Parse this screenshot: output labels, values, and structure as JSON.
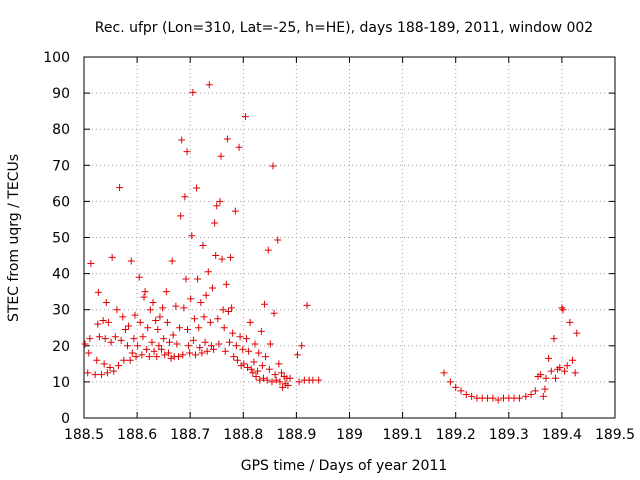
{
  "chart_data": {
    "type": "scatter",
    "title": "Rec. ufpr (Lon=310, Lat=-25, h=HE), days 188-189, 2011, window 002",
    "xlabel": "GPS time / Days of year 2011",
    "ylabel": "STEC from uqrg / TECUs",
    "xlim": [
      188.5,
      189.5
    ],
    "ylim": [
      0,
      100
    ],
    "xticks": [
      188.5,
      188.6,
      188.7,
      188.8,
      188.9,
      189,
      189.1,
      189.2,
      189.3,
      189.4,
      189.5
    ],
    "xtick_labels": [
      "188.5",
      "188.6",
      "188.7",
      "188.8",
      "188.9",
      "189",
      "189.1",
      "189.2",
      "189.3",
      "189.4",
      "189.5"
    ],
    "yticks": [
      0,
      10,
      20,
      30,
      40,
      50,
      60,
      70,
      80,
      90,
      100
    ],
    "ytick_labels": [
      "0",
      "10",
      "20",
      "30",
      "40",
      "50",
      "60",
      "70",
      "80",
      "90",
      "100"
    ],
    "grid": true,
    "marker": "+",
    "color": "#e00000",
    "points": [
      [
        188.502,
        20.5
      ],
      [
        188.507,
        12.5
      ],
      [
        188.509,
        18.0
      ],
      [
        188.511,
        22.0
      ],
      [
        188.513,
        42.8
      ],
      [
        188.521,
        12.0
      ],
      [
        188.524,
        16.0
      ],
      [
        188.526,
        26.0
      ],
      [
        188.527,
        34.8
      ],
      [
        188.529,
        22.5
      ],
      [
        188.533,
        12.0
      ],
      [
        188.536,
        27.0
      ],
      [
        188.538,
        15.0
      ],
      [
        188.54,
        22.0
      ],
      [
        188.542,
        32.0
      ],
      [
        188.544,
        12.5
      ],
      [
        188.546,
        26.5
      ],
      [
        188.549,
        14.0
      ],
      [
        188.551,
        21.0
      ],
      [
        188.553,
        44.5
      ],
      [
        188.556,
        13.0
      ],
      [
        188.559,
        22.5
      ],
      [
        188.562,
        30.0
      ],
      [
        188.565,
        14.5
      ],
      [
        188.567,
        63.8
      ],
      [
        188.57,
        21.5
      ],
      [
        188.573,
        28.0
      ],
      [
        188.575,
        16.0
      ],
      [
        188.578,
        24.5
      ],
      [
        188.582,
        20.0
      ],
      [
        188.584,
        25.5
      ],
      [
        188.587,
        16.0
      ],
      [
        188.589,
        43.5
      ],
      [
        188.591,
        18.0
      ],
      [
        188.594,
        22.0
      ],
      [
        188.596,
        28.5
      ],
      [
        188.598,
        17.0
      ],
      [
        188.601,
        20.0
      ],
      [
        188.604,
        39.0
      ],
      [
        188.606,
        26.5
      ],
      [
        188.609,
        17.5
      ],
      [
        188.611,
        22.5
      ],
      [
        188.613,
        33.5
      ],
      [
        188.615,
        35.0
      ],
      [
        188.618,
        19.0
      ],
      [
        188.62,
        25.0
      ],
      [
        188.623,
        17.0
      ],
      [
        188.625,
        30.0
      ],
      [
        188.628,
        21.0
      ],
      [
        188.63,
        32.0
      ],
      [
        188.632,
        18.5
      ],
      [
        188.635,
        27.0
      ],
      [
        188.637,
        17.0
      ],
      [
        188.639,
        24.5
      ],
      [
        188.641,
        20.0
      ],
      [
        188.643,
        28.0
      ],
      [
        188.646,
        19.0
      ],
      [
        188.648,
        30.5
      ],
      [
        188.65,
        22.0
      ],
      [
        188.652,
        17.5
      ],
      [
        188.655,
        35.0
      ],
      [
        188.657,
        26.5
      ],
      [
        188.659,
        18.0
      ],
      [
        188.661,
        21.0
      ],
      [
        188.664,
        16.5
      ],
      [
        188.666,
        43.5
      ],
      [
        188.668,
        23.0
      ],
      [
        188.67,
        17.0
      ],
      [
        188.673,
        31.0
      ],
      [
        188.675,
        20.5
      ],
      [
        188.678,
        17.0
      ],
      [
        188.68,
        25.0
      ],
      [
        188.682,
        56.0
      ],
      [
        188.684,
        77.0
      ],
      [
        188.686,
        17.5
      ],
      [
        188.688,
        30.5
      ],
      [
        188.69,
        61.3
      ],
      [
        188.692,
        38.5
      ],
      [
        188.694,
        73.8
      ],
      [
        188.695,
        24.5
      ],
      [
        188.697,
        20.0
      ],
      [
        188.699,
        18.0
      ],
      [
        188.701,
        33.0
      ],
      [
        188.703,
        50.5
      ],
      [
        188.705,
        90.2
      ],
      [
        188.706,
        21.5
      ],
      [
        188.708,
        27.5
      ],
      [
        188.71,
        17.5
      ],
      [
        188.712,
        63.7
      ],
      [
        188.714,
        38.5
      ],
      [
        188.716,
        25.0
      ],
      [
        188.718,
        19.5
      ],
      [
        188.72,
        32.0
      ],
      [
        188.722,
        18.0
      ],
      [
        188.724,
        47.8
      ],
      [
        188.726,
        28.0
      ],
      [
        188.728,
        21.0
      ],
      [
        188.73,
        34.0
      ],
      [
        188.732,
        18.5
      ],
      [
        188.734,
        40.5
      ],
      [
        188.736,
        92.3
      ],
      [
        188.738,
        26.5
      ],
      [
        188.74,
        20.0
      ],
      [
        188.742,
        36.0
      ],
      [
        188.744,
        19.0
      ],
      [
        188.746,
        54.0
      ],
      [
        188.748,
        45.0
      ],
      [
        188.75,
        58.8
      ],
      [
        188.752,
        27.5
      ],
      [
        188.754,
        20.5
      ],
      [
        188.756,
        60.0
      ],
      [
        188.758,
        72.5
      ],
      [
        188.76,
        44.0
      ],
      [
        188.762,
        30.0
      ],
      [
        188.764,
        25.0
      ],
      [
        188.766,
        18.5
      ],
      [
        188.768,
        37.0
      ],
      [
        188.77,
        77.3
      ],
      [
        188.772,
        29.5
      ],
      [
        188.774,
        21.0
      ],
      [
        188.776,
        44.5
      ],
      [
        188.778,
        30.5
      ],
      [
        188.78,
        23.5
      ],
      [
        188.782,
        17.0
      ],
      [
        188.785,
        57.3
      ],
      [
        188.787,
        20.0
      ],
      [
        188.789,
        16.0
      ],
      [
        188.792,
        75.0
      ],
      [
        188.794,
        22.5
      ],
      [
        188.796,
        14.5
      ],
      [
        188.799,
        19.0
      ],
      [
        188.801,
        15.0
      ],
      [
        188.804,
        83.5
      ],
      [
        188.806,
        22.0
      ],
      [
        188.808,
        14.0
      ],
      [
        188.81,
        18.5
      ],
      [
        188.813,
        26.5
      ],
      [
        188.815,
        13.5
      ],
      [
        188.818,
        12.5
      ],
      [
        188.82,
        15.5
      ],
      [
        188.822,
        20.5
      ],
      [
        188.824,
        11.5
      ],
      [
        188.827,
        13.0
      ],
      [
        188.829,
        18.0
      ],
      [
        188.831,
        10.5
      ],
      [
        188.834,
        24.0
      ],
      [
        188.836,
        14.5
      ],
      [
        188.838,
        11.0
      ],
      [
        188.84,
        31.5
      ],
      [
        188.842,
        17.0
      ],
      [
        188.845,
        10.5
      ],
      [
        188.847,
        46.5
      ],
      [
        188.849,
        13.5
      ],
      [
        188.851,
        20.5
      ],
      [
        188.854,
        10.0
      ],
      [
        188.856,
        69.8
      ],
      [
        188.858,
        29.0
      ],
      [
        188.86,
        12.0
      ],
      [
        188.862,
        10.5
      ],
      [
        188.865,
        49.3
      ],
      [
        188.867,
        15.0
      ],
      [
        188.869,
        10.0
      ],
      [
        188.872,
        12.5
      ],
      [
        188.874,
        8.5
      ],
      [
        188.877,
        11.5
      ],
      [
        188.879,
        9.5
      ],
      [
        188.882,
        11.0
      ],
      [
        188.884,
        9.0
      ],
      [
        188.888,
        11.0
      ],
      [
        188.902,
        17.5
      ],
      [
        188.905,
        10.0
      ],
      [
        188.91,
        20.0
      ],
      [
        188.915,
        10.5
      ],
      [
        188.92,
        31.2
      ],
      [
        188.924,
        10.5
      ],
      [
        188.931,
        10.5
      ],
      [
        188.942,
        10.5
      ],
      [
        189.178,
        12.5
      ],
      [
        189.19,
        10.0
      ],
      [
        189.2,
        8.5
      ],
      [
        189.21,
        7.5
      ],
      [
        189.22,
        6.5
      ],
      [
        189.23,
        6.0
      ],
      [
        189.24,
        5.5
      ],
      [
        189.25,
        5.5
      ],
      [
        189.26,
        5.5
      ],
      [
        189.27,
        5.5
      ],
      [
        189.28,
        5.0
      ],
      [
        189.29,
        5.5
      ],
      [
        189.3,
        5.5
      ],
      [
        189.31,
        5.5
      ],
      [
        189.32,
        5.5
      ],
      [
        189.332,
        6.0
      ],
      [
        189.342,
        6.5
      ],
      [
        189.35,
        7.5
      ],
      [
        189.355,
        11.5
      ],
      [
        189.36,
        12.0
      ],
      [
        189.365,
        6.0
      ],
      [
        189.368,
        8.0
      ],
      [
        189.37,
        11.0
      ],
      [
        189.375,
        16.5
      ],
      [
        189.38,
        13.0
      ],
      [
        189.385,
        22.0
      ],
      [
        189.388,
        11.0
      ],
      [
        189.392,
        13.5
      ],
      [
        189.396,
        14.0
      ],
      [
        189.4,
        30.5
      ],
      [
        189.402,
        30.0
      ],
      [
        189.405,
        13.0
      ],
      [
        189.41,
        14.5
      ],
      [
        189.415,
        26.5
      ],
      [
        189.42,
        16.0
      ],
      [
        189.425,
        12.5
      ],
      [
        189.428,
        23.5
      ]
    ]
  }
}
